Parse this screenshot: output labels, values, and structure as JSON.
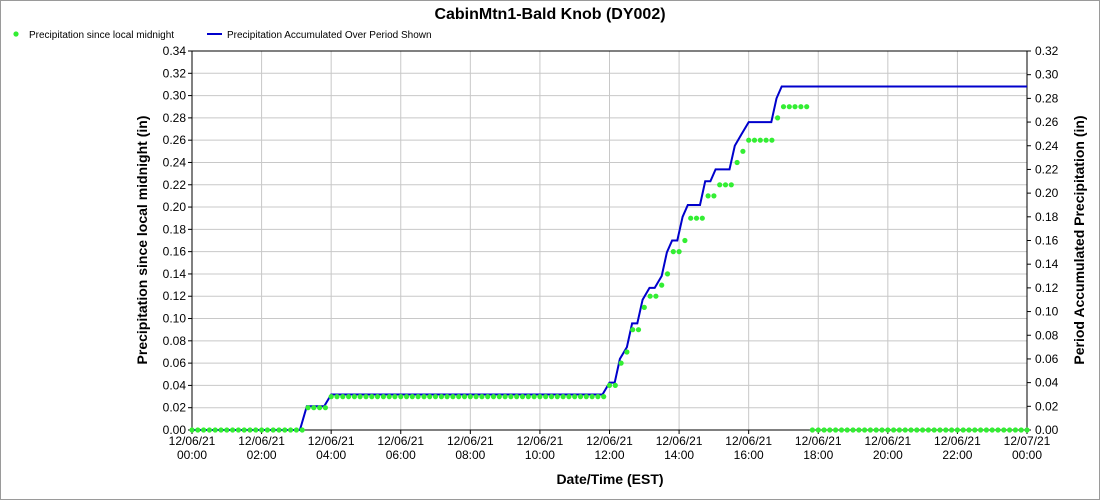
{
  "chart_data": {
    "type": "line",
    "title": "CabinMtn1-Bald Knob (DY002)",
    "xlabel": "Date/Time (EST)",
    "ylabel_left": "Precipitation since local midnight (in)",
    "ylabel_right": "Period Accumulated Precipitation (in)",
    "ylim_left": [
      0,
      0.34
    ],
    "ylim_right": [
      0,
      0.32
    ],
    "y_step": 0.02,
    "xlim_hours": [
      0,
      24
    ],
    "x_ticks": [
      {
        "date": "12/06/21",
        "time": "00:00"
      },
      {
        "date": "12/06/21",
        "time": "02:00"
      },
      {
        "date": "12/06/21",
        "time": "04:00"
      },
      {
        "date": "12/06/21",
        "time": "06:00"
      },
      {
        "date": "12/06/21",
        "time": "08:00"
      },
      {
        "date": "12/06/21",
        "time": "10:00"
      },
      {
        "date": "12/06/21",
        "time": "12:00"
      },
      {
        "date": "12/06/21",
        "time": "14:00"
      },
      {
        "date": "12/06/21",
        "time": "16:00"
      },
      {
        "date": "12/06/21",
        "time": "18:00"
      },
      {
        "date": "12/06/21",
        "time": "20:00"
      },
      {
        "date": "12/06/21",
        "time": "22:00"
      },
      {
        "date": "12/07/21",
        "time": "00:00"
      }
    ],
    "grid": true,
    "legend_placement": "top-left",
    "series": [
      {
        "name": "Precipitation since local midnight",
        "kind": "points",
        "axis": "left",
        "color": "#33ee33",
        "points": [
          [
            0.0,
            0
          ],
          [
            0.167,
            0
          ],
          [
            0.333,
            0
          ],
          [
            0.5,
            0
          ],
          [
            0.667,
            0
          ],
          [
            0.833,
            0
          ],
          [
            1.0,
            0
          ],
          [
            1.167,
            0
          ],
          [
            1.333,
            0
          ],
          [
            1.5,
            0
          ],
          [
            1.667,
            0
          ],
          [
            1.833,
            0
          ],
          [
            2.0,
            0
          ],
          [
            2.167,
            0
          ],
          [
            2.333,
            0
          ],
          [
            2.5,
            0
          ],
          [
            2.667,
            0
          ],
          [
            2.833,
            0
          ],
          [
            3.0,
            0
          ],
          [
            3.167,
            0
          ],
          [
            3.333,
            0.02
          ],
          [
            3.5,
            0.02
          ],
          [
            3.667,
            0.02
          ],
          [
            3.833,
            0.02
          ],
          [
            4.0,
            0.03
          ],
          [
            4.167,
            0.03
          ],
          [
            4.333,
            0.03
          ],
          [
            4.5,
            0.03
          ],
          [
            4.667,
            0.03
          ],
          [
            4.833,
            0.03
          ],
          [
            5.0,
            0.03
          ],
          [
            5.167,
            0.03
          ],
          [
            5.333,
            0.03
          ],
          [
            5.5,
            0.03
          ],
          [
            5.667,
            0.03
          ],
          [
            5.833,
            0.03
          ],
          [
            6.0,
            0.03
          ],
          [
            6.167,
            0.03
          ],
          [
            6.333,
            0.03
          ],
          [
            6.5,
            0.03
          ],
          [
            6.667,
            0.03
          ],
          [
            6.833,
            0.03
          ],
          [
            7.0,
            0.03
          ],
          [
            7.167,
            0.03
          ],
          [
            7.333,
            0.03
          ],
          [
            7.5,
            0.03
          ],
          [
            7.667,
            0.03
          ],
          [
            7.833,
            0.03
          ],
          [
            8.0,
            0.03
          ],
          [
            8.167,
            0.03
          ],
          [
            8.333,
            0.03
          ],
          [
            8.5,
            0.03
          ],
          [
            8.667,
            0.03
          ],
          [
            8.833,
            0.03
          ],
          [
            9.0,
            0.03
          ],
          [
            9.167,
            0.03
          ],
          [
            9.333,
            0.03
          ],
          [
            9.5,
            0.03
          ],
          [
            9.667,
            0.03
          ],
          [
            9.833,
            0.03
          ],
          [
            10.0,
            0.03
          ],
          [
            10.167,
            0.03
          ],
          [
            10.333,
            0.03
          ],
          [
            10.5,
            0.03
          ],
          [
            10.667,
            0.03
          ],
          [
            10.833,
            0.03
          ],
          [
            11.0,
            0.03
          ],
          [
            11.167,
            0.03
          ],
          [
            11.333,
            0.03
          ],
          [
            11.5,
            0.03
          ],
          [
            11.667,
            0.03
          ],
          [
            11.833,
            0.03
          ],
          [
            12.0,
            0.04
          ],
          [
            12.167,
            0.04
          ],
          [
            12.333,
            0.06
          ],
          [
            12.5,
            0.07
          ],
          [
            12.667,
            0.09
          ],
          [
            12.833,
            0.09
          ],
          [
            13.0,
            0.11
          ],
          [
            13.167,
            0.12
          ],
          [
            13.333,
            0.12
          ],
          [
            13.5,
            0.13
          ],
          [
            13.667,
            0.14
          ],
          [
            13.833,
            0.16
          ],
          [
            14.0,
            0.16
          ],
          [
            14.167,
            0.17
          ],
          [
            14.333,
            0.19
          ],
          [
            14.5,
            0.19
          ],
          [
            14.667,
            0.19
          ],
          [
            14.833,
            0.21
          ],
          [
            15.0,
            0.21
          ],
          [
            15.167,
            0.22
          ],
          [
            15.333,
            0.22
          ],
          [
            15.5,
            0.22
          ],
          [
            15.667,
            0.24
          ],
          [
            15.833,
            0.25
          ],
          [
            16.0,
            0.26
          ],
          [
            16.167,
            0.26
          ],
          [
            16.333,
            0.26
          ],
          [
            16.5,
            0.26
          ],
          [
            16.667,
            0.26
          ],
          [
            16.833,
            0.28
          ],
          [
            17.0,
            0.29
          ],
          [
            17.167,
            0.29
          ],
          [
            17.333,
            0.29
          ],
          [
            17.5,
            0.29
          ],
          [
            17.667,
            0.29
          ],
          [
            17.833,
            0
          ],
          [
            18.0,
            0
          ],
          [
            18.167,
            0
          ],
          [
            18.333,
            0
          ],
          [
            18.5,
            0
          ],
          [
            18.667,
            0
          ],
          [
            18.833,
            0
          ],
          [
            19.0,
            0
          ],
          [
            19.167,
            0
          ],
          [
            19.333,
            0
          ],
          [
            19.5,
            0
          ],
          [
            19.667,
            0
          ],
          [
            19.833,
            0
          ],
          [
            20.0,
            0
          ],
          [
            20.167,
            0
          ],
          [
            20.333,
            0
          ],
          [
            20.5,
            0
          ],
          [
            20.667,
            0
          ],
          [
            20.833,
            0
          ],
          [
            21.0,
            0
          ],
          [
            21.167,
            0
          ],
          [
            21.333,
            0
          ],
          [
            21.5,
            0
          ],
          [
            21.667,
            0
          ],
          [
            21.833,
            0
          ],
          [
            22.0,
            0
          ],
          [
            22.167,
            0
          ],
          [
            22.333,
            0
          ],
          [
            22.5,
            0
          ],
          [
            22.667,
            0
          ],
          [
            22.833,
            0
          ],
          [
            23.0,
            0
          ],
          [
            23.167,
            0
          ],
          [
            23.333,
            0
          ],
          [
            23.5,
            0
          ],
          [
            23.667,
            0
          ],
          [
            23.833,
            0
          ],
          [
            24.0,
            0
          ]
        ]
      },
      {
        "name": "Precipitation Accumulated Over Period Shown",
        "kind": "line",
        "axis": "right",
        "color": "#0000cc",
        "points": [
          [
            0,
            0
          ],
          [
            3.1,
            0
          ],
          [
            3.3,
            0.02
          ],
          [
            3.8,
            0.02
          ],
          [
            4.0,
            0.03
          ],
          [
            11.8,
            0.03
          ],
          [
            12.0,
            0.04
          ],
          [
            12.15,
            0.04
          ],
          [
            12.3,
            0.06
          ],
          [
            12.5,
            0.07
          ],
          [
            12.65,
            0.09
          ],
          [
            12.8,
            0.09
          ],
          [
            12.95,
            0.11
          ],
          [
            13.15,
            0.12
          ],
          [
            13.3,
            0.12
          ],
          [
            13.5,
            0.13
          ],
          [
            13.65,
            0.15
          ],
          [
            13.8,
            0.16
          ],
          [
            13.95,
            0.16
          ],
          [
            14.1,
            0.18
          ],
          [
            14.25,
            0.19
          ],
          [
            14.6,
            0.19
          ],
          [
            14.75,
            0.21
          ],
          [
            14.9,
            0.21
          ],
          [
            15.05,
            0.22
          ],
          [
            15.45,
            0.22
          ],
          [
            15.6,
            0.24
          ],
          [
            15.8,
            0.25
          ],
          [
            16.0,
            0.26
          ],
          [
            16.65,
            0.26
          ],
          [
            16.8,
            0.28
          ],
          [
            16.95,
            0.29
          ],
          [
            24,
            0.29
          ]
        ]
      }
    ]
  }
}
